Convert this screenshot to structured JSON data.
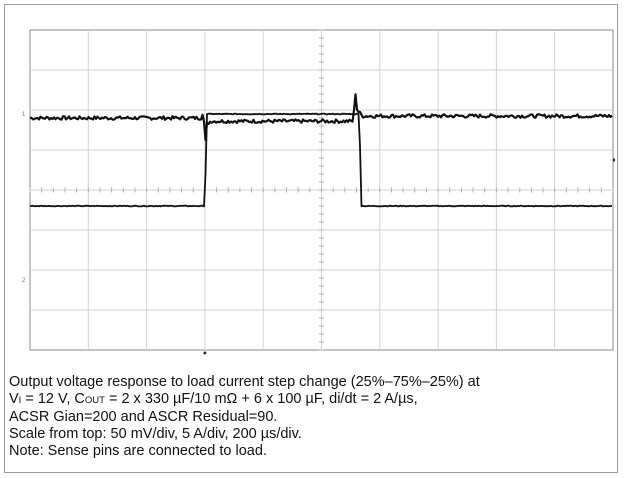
{
  "chart_data": {
    "type": "line",
    "title": "",
    "xlabel": "",
    "ylabel": "",
    "grid": true,
    "grid_divisions": {
      "x": 10,
      "y": 8
    },
    "x_unit": "µs",
    "x_scale_per_div": 200,
    "xlim": [
      0,
      2000
    ],
    "series": [
      {
        "description_unit": "mV",
        "scale_per_div": 50,
        "points": [
          [
            0,
            0
          ],
          [
            590,
            0
          ],
          [
            595,
            0.35
          ],
          [
            600,
            -0.8
          ],
          [
            606,
            -0.15
          ],
          [
            620,
            -0.08
          ],
          [
            1080,
            -0.08
          ],
          [
            1110,
            -0.08
          ],
          [
            1115,
            0.75
          ],
          [
            1122,
            0.2
          ],
          [
            1140,
            0.05
          ],
          [
            2000,
            0.05
          ]
        ]
      },
      {
        "description_unit": "A",
        "scale_per_div": 5,
        "points": [
          [
            0,
            0
          ],
          [
            600,
            0
          ],
          [
            606,
            2.3
          ],
          [
            1130,
            2.3
          ],
          [
            1136,
            0
          ],
          [
            2000,
            0
          ]
        ]
      }
    ]
  },
  "caption": {
    "line1": "Output voltage response to load current step change (25%–75%–25%) at",
    "line2": {
      "vi_main": "V",
      "vi_sub": "I",
      "vi_rest": " = 12 V, C",
      "cout_sub": "OUT",
      "cout_rest": " = 2 x 330 µF/10 mΩ + 6 x 100 µF, di/dt = 2 A/µs,"
    },
    "line3": "ACSR Gian=200 and ASCR Residual=90.",
    "line4": "Scale from top: 50 mV/div, 5 A/div, 200 µs/div.",
    "line5": "Note: Sense pins are connected to load."
  }
}
